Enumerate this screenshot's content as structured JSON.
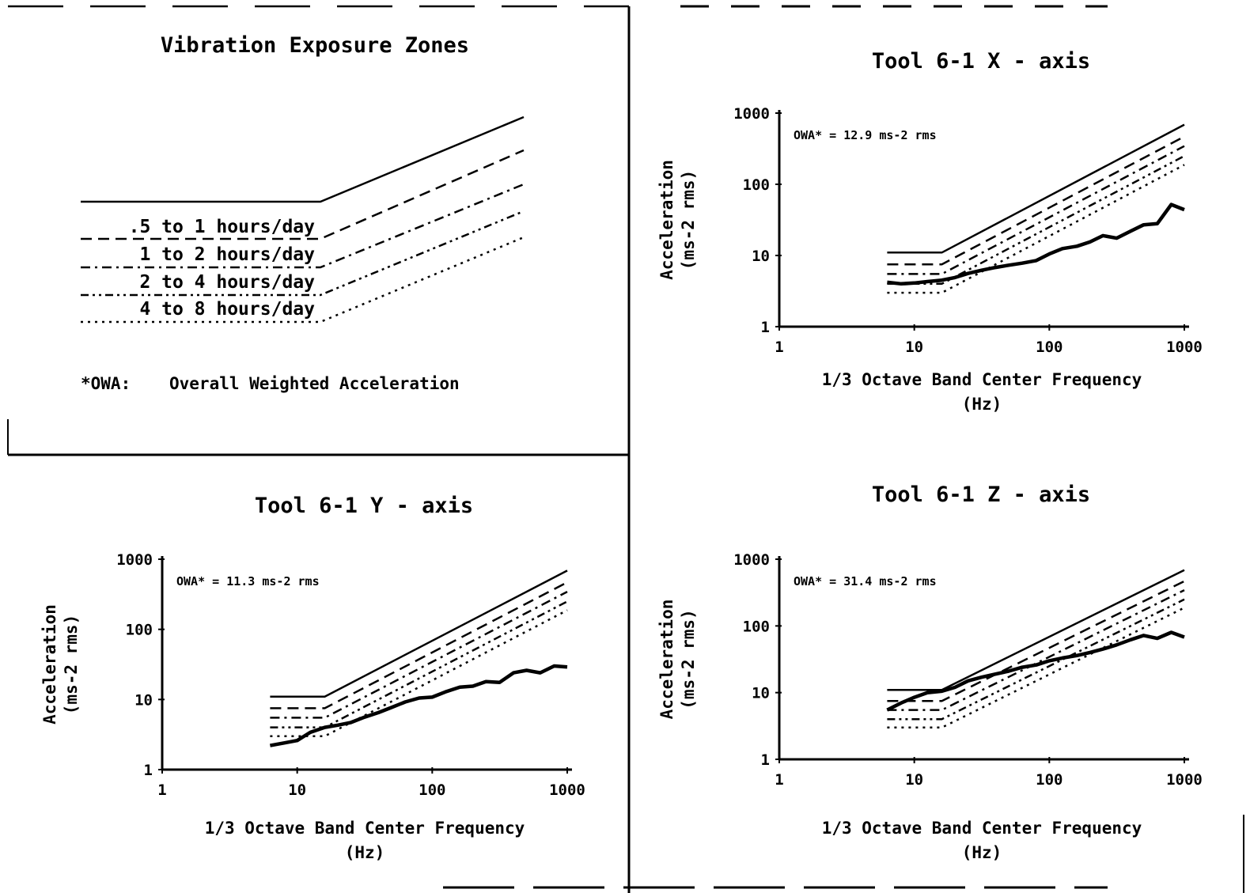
{
  "legend_panel": {
    "title": "Vibration Exposure Zones",
    "zones": [
      {
        "label": ".5 to 1 hours/day",
        "style": "dashed"
      },
      {
        "label": "1 to 2 hours/day",
        "style": "dash-dot"
      },
      {
        "label": "2 to 4 hours/day",
        "style": "dash-dot-dot"
      },
      {
        "label": "4 to 8 hours/day",
        "style": "dotted"
      }
    ],
    "footnote_key": "*OWA:",
    "footnote_text": "Overall Weighted Acceleration"
  },
  "chart_data": [
    {
      "id": "x",
      "type": "line",
      "title": "Tool 6-1 X - axis",
      "xlabel": "1/3 Octave Band Center Frequency",
      "xunit": "(Hz)",
      "ylabel": "Acceleration",
      "yunit": "(ms-2 rms)",
      "xscale": "log",
      "yscale": "log",
      "xlim": [
        1,
        1000
      ],
      "ylim": [
        1,
        1000
      ],
      "xticks": [
        "1",
        "10",
        "100",
        "1000"
      ],
      "yticks": [
        "1",
        "10",
        "100",
        "1000"
      ],
      "owa": "OWA* = 12.9 ms-2 rms",
      "zone_floor_values": [
        11,
        7.5,
        5.5,
        4,
        3
      ],
      "zone_styles": [
        "solid",
        "dashed",
        "dash-dot",
        "dash-dot-dot",
        "dotted"
      ],
      "series": [
        {
          "x": [
            6.3,
            8,
            10,
            12.5,
            16,
            20,
            25,
            31.5,
            40,
            50,
            63,
            80,
            100,
            125,
            160,
            200,
            250,
            315,
            400,
            500,
            630,
            800,
            1000
          ],
          "values": [
            4.2,
            4.0,
            4.1,
            4.3,
            4.5,
            4.9,
            5.6,
            6.2,
            6.8,
            7.3,
            7.8,
            8.5,
            10.5,
            12.5,
            13.5,
            15.5,
            19,
            17.5,
            22,
            27,
            28,
            52,
            44
          ]
        }
      ]
    },
    {
      "id": "y",
      "type": "line",
      "title": "Tool 6-1 Y - axis",
      "xlabel": "1/3 Octave Band Center Frequency",
      "xunit": "(Hz)",
      "ylabel": "Acceleration",
      "yunit": "(ms-2 rms)",
      "xscale": "log",
      "yscale": "log",
      "xlim": [
        1,
        1000
      ],
      "ylim": [
        1,
        1000
      ],
      "xticks": [
        "1",
        "10",
        "100",
        "1000"
      ],
      "yticks": [
        "1",
        "10",
        "100",
        "1000"
      ],
      "owa": "OWA* = 11.3 ms-2 rms",
      "zone_floor_values": [
        11,
        7.5,
        5.5,
        4,
        3
      ],
      "zone_styles": [
        "solid",
        "dashed",
        "dash-dot",
        "dash-dot-dot",
        "dotted"
      ],
      "series": [
        {
          "x": [
            6.3,
            8,
            10,
            12.5,
            16,
            20,
            25,
            31.5,
            40,
            50,
            63,
            80,
            100,
            125,
            160,
            200,
            250,
            315,
            400,
            500,
            630,
            800,
            1000
          ],
          "values": [
            2.2,
            2.4,
            2.6,
            3.4,
            4.0,
            4.3,
            4.7,
            5.6,
            6.5,
            7.7,
            9.2,
            10.5,
            10.8,
            12.8,
            15,
            15.5,
            18,
            17.5,
            24,
            26,
            24,
            30,
            29
          ]
        }
      ]
    },
    {
      "id": "z",
      "type": "line",
      "title": "Tool 6-1 Z - axis",
      "xlabel": "1/3 Octave Band Center Frequency",
      "xunit": "(Hz)",
      "ylabel": "Acceleration",
      "yunit": "(ms-2 rms)",
      "xscale": "log",
      "yscale": "log",
      "xlim": [
        1,
        1000
      ],
      "ylim": [
        1,
        1000
      ],
      "xticks": [
        "1",
        "10",
        "100",
        "1000"
      ],
      "yticks": [
        "1",
        "10",
        "100",
        "1000"
      ],
      "owa": "OWA* = 31.4 ms-2 rms",
      "zone_floor_values": [
        11,
        7.5,
        5.5,
        4,
        3
      ],
      "zone_styles": [
        "solid",
        "dashed",
        "dash-dot",
        "dash-dot-dot",
        "dotted"
      ],
      "series": [
        {
          "x": [
            6.3,
            8,
            10,
            12.5,
            16,
            20,
            25,
            31.5,
            40,
            50,
            63,
            80,
            100,
            125,
            160,
            200,
            250,
            315,
            400,
            500,
            630,
            800,
            1000
          ],
          "values": [
            5.5,
            7,
            8.5,
            10,
            10.5,
            12,
            15,
            17,
            19,
            21,
            24,
            26,
            30,
            33,
            36,
            40,
            45,
            52,
            62,
            72,
            65,
            80,
            68
          ]
        }
      ]
    }
  ]
}
